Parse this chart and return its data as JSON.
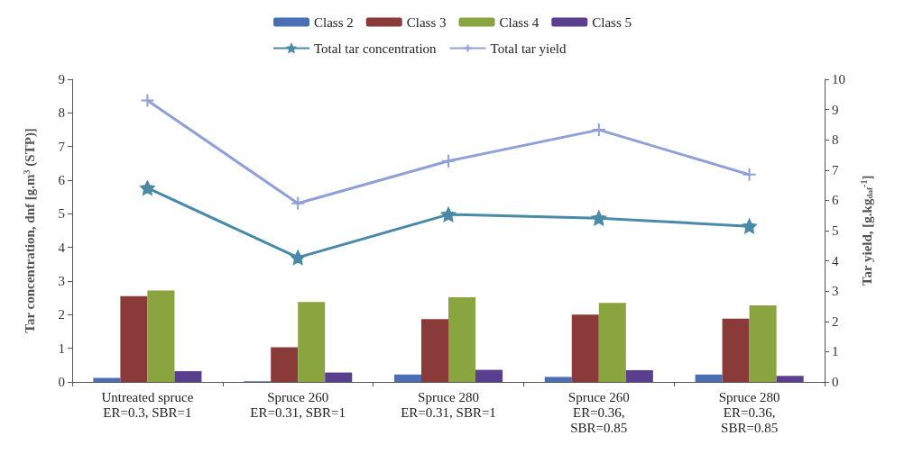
{
  "chart_data": {
    "type": "bar",
    "categories": [
      "Untreated spruce\nER=0.3, SBR=1",
      "Spruce 260\nER=0.31, SBR=1",
      "Spruce 280\nER=0.31, SBR=1",
      "Spruce 260\nER=0.36,\nSBR=0.85",
      "Spruce 280\nER=0.36,\nSBR=0.85"
    ],
    "ylabel": "Tar concentration, dnf [g.m$^{3}$ (STP)]",
    "y2label": "Tar yield, [g.kg$_{daf}$$^{-1}$]",
    "ylim": [
      0,
      9
    ],
    "yticks": [
      0,
      1,
      2,
      3,
      4,
      5,
      6,
      7,
      8,
      9
    ],
    "y2lim": [
      0,
      10
    ],
    "y2ticks": [
      0,
      1,
      2,
      3,
      4,
      5,
      6,
      7,
      8,
      9,
      10
    ],
    "grid": false,
    "legend": "top",
    "series": [
      {
        "name": "Class 2",
        "color": "#4a6fb5",
        "values": [
          0.12,
          0.02,
          0.22,
          0.15,
          0.22
        ]
      },
      {
        "name": "Class 3",
        "color": "#8b3a3a",
        "values": [
          2.55,
          1.03,
          1.87,
          2.0,
          1.88
        ]
      },
      {
        "name": "Class 4",
        "color": "#8aa43f",
        "values": [
          2.72,
          2.38,
          2.52,
          2.35,
          2.28
        ]
      },
      {
        "name": "Class 5",
        "color": "#5b3f8f",
        "values": [
          0.32,
          0.28,
          0.36,
          0.35,
          0.18
        ]
      },
      {
        "name": "Total tar concentration",
        "type": "line",
        "marker": "star",
        "color": "#4a8aa8",
        "values": [
          5.77,
          3.7,
          4.98,
          4.87,
          4.63
        ]
      },
      {
        "name": "Total tar yield",
        "type": "line",
        "marker": "cross",
        "axis": "y2",
        "color": "#8f9fd8",
        "values": [
          9.3,
          5.9,
          7.3,
          8.33,
          6.85
        ]
      }
    ]
  }
}
